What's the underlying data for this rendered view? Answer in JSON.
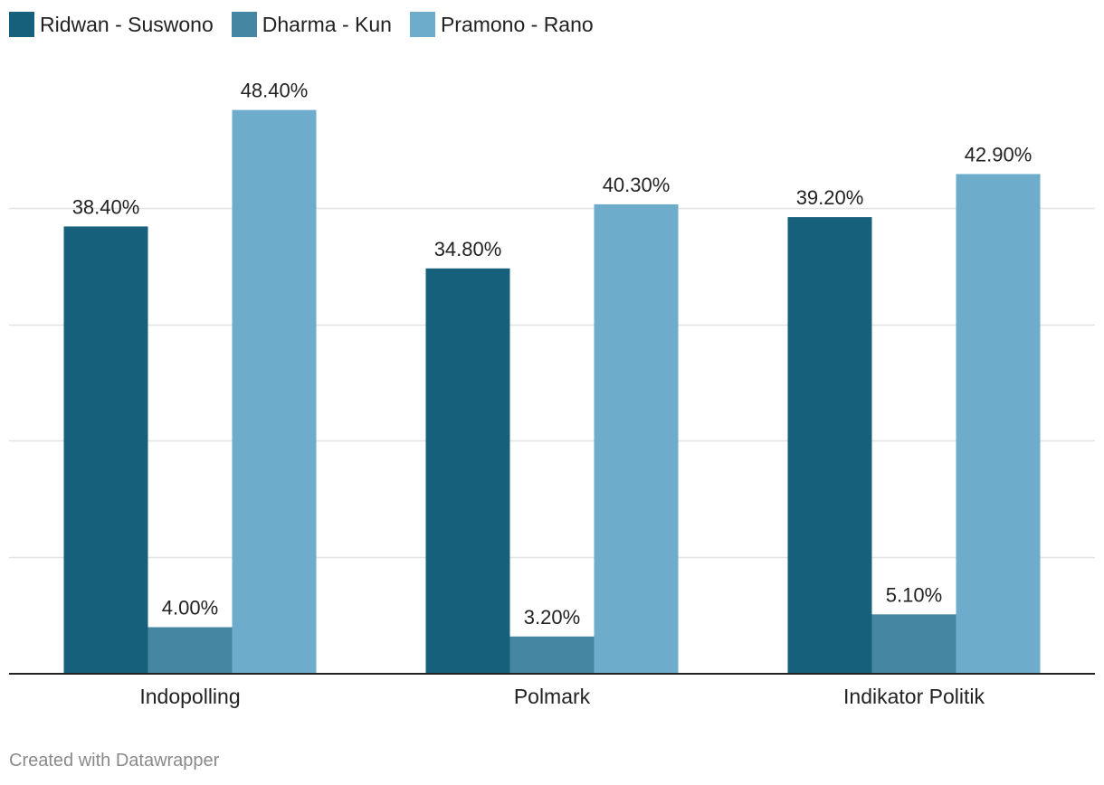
{
  "chart_data": {
    "type": "bar",
    "categories": [
      "Indopolling",
      "Polmark",
      "Indikator Politik"
    ],
    "series": [
      {
        "name": "Ridwan - Suswono",
        "color": "#17607c",
        "values": [
          38.4,
          34.8,
          39.2
        ],
        "labels": [
          "38.40%",
          "34.80%",
          "39.20%"
        ]
      },
      {
        "name": "Dharma - Kun",
        "color": "#4587a3",
        "values": [
          4.0,
          3.2,
          5.1
        ],
        "labels": [
          "4.00%",
          "3.20%",
          "5.10%"
        ]
      },
      {
        "name": "Pramono - Rano",
        "color": "#6dacca",
        "values": [
          48.4,
          40.3,
          42.9
        ],
        "labels": [
          "48.40%",
          "40.30%",
          "42.90%"
        ]
      }
    ],
    "ylim": [
      0,
      50
    ],
    "grid": true,
    "legend": "top-left"
  },
  "footer": {
    "credit": "Created with Datawrapper"
  }
}
